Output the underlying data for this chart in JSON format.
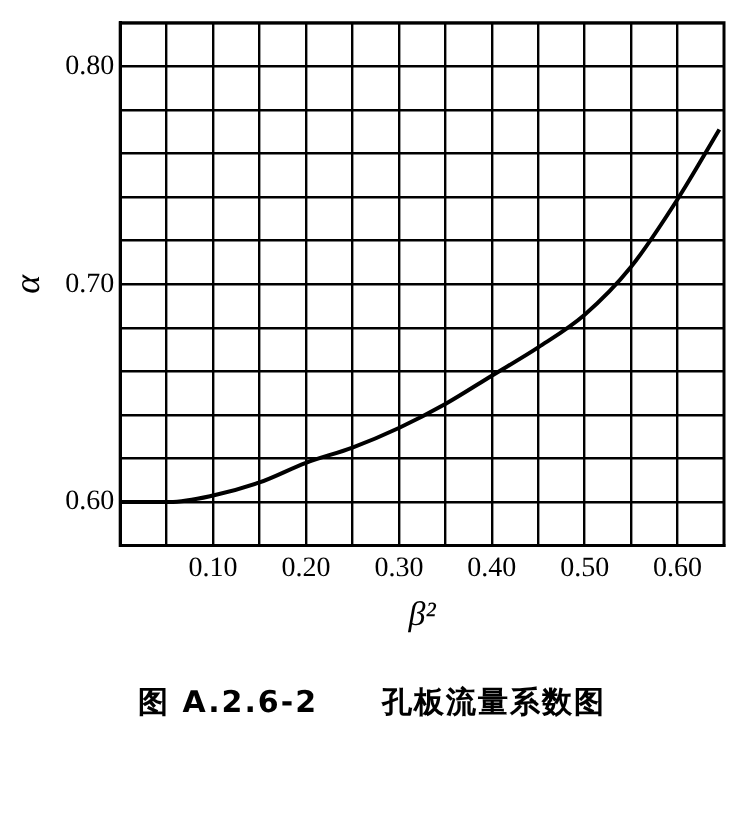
{
  "chart_data": {
    "type": "line",
    "xlabel": "β²",
    "ylabel": "α",
    "x": [
      0,
      0.053,
      0.1,
      0.15,
      0.2,
      0.25,
      0.3,
      0.35,
      0.4,
      0.45,
      0.5,
      0.55,
      0.6,
      0.645
    ],
    "series": [
      {
        "color": "#000000",
        "values": [
          0.6,
          0.6,
          0.603,
          0.609,
          0.618,
          0.625,
          0.634,
          0.645,
          0.658,
          0.671,
          0.686,
          0.708,
          0.739,
          0.771
        ]
      }
    ],
    "xlim": [
      0,
      0.65
    ],
    "xticks": [
      {
        "value": 0.05,
        "label": null
      },
      {
        "value": 0.1,
        "label": "0.10"
      },
      {
        "value": 0.15,
        "label": null
      },
      {
        "value": 0.2,
        "label": "0.20"
      },
      {
        "value": 0.25,
        "label": null
      },
      {
        "value": 0.3,
        "label": "0.30"
      },
      {
        "value": 0.35,
        "label": null
      },
      {
        "value": 0.4,
        "label": "0.40"
      },
      {
        "value": 0.45,
        "label": null
      },
      {
        "value": 0.5,
        "label": "0.50"
      },
      {
        "value": 0.55,
        "label": null
      },
      {
        "value": 0.6,
        "label": "0.60"
      }
    ],
    "ylim": [
      0.58,
      0.82
    ],
    "yticks": [
      {
        "value": 0.58,
        "label": null
      },
      {
        "value": 0.6,
        "label": "0.60"
      },
      {
        "value": 0.62,
        "label": null
      },
      {
        "value": 0.64,
        "label": null
      },
      {
        "value": 0.66,
        "label": null
      },
      {
        "value": 0.68,
        "label": null
      },
      {
        "value": 0.7,
        "label": "0.70"
      },
      {
        "value": 0.72,
        "label": null
      },
      {
        "value": 0.74,
        "label": null
      },
      {
        "value": 0.76,
        "label": null
      },
      {
        "value": 0.78,
        "label": null
      },
      {
        "value": 0.8,
        "label": "0.80"
      },
      {
        "value": 0.82,
        "label": null
      }
    ],
    "grid": true,
    "marker": "none",
    "line_style": "solid",
    "annotations": [
      "图 A.2.6-2　　孔板流量系数图"
    ]
  }
}
